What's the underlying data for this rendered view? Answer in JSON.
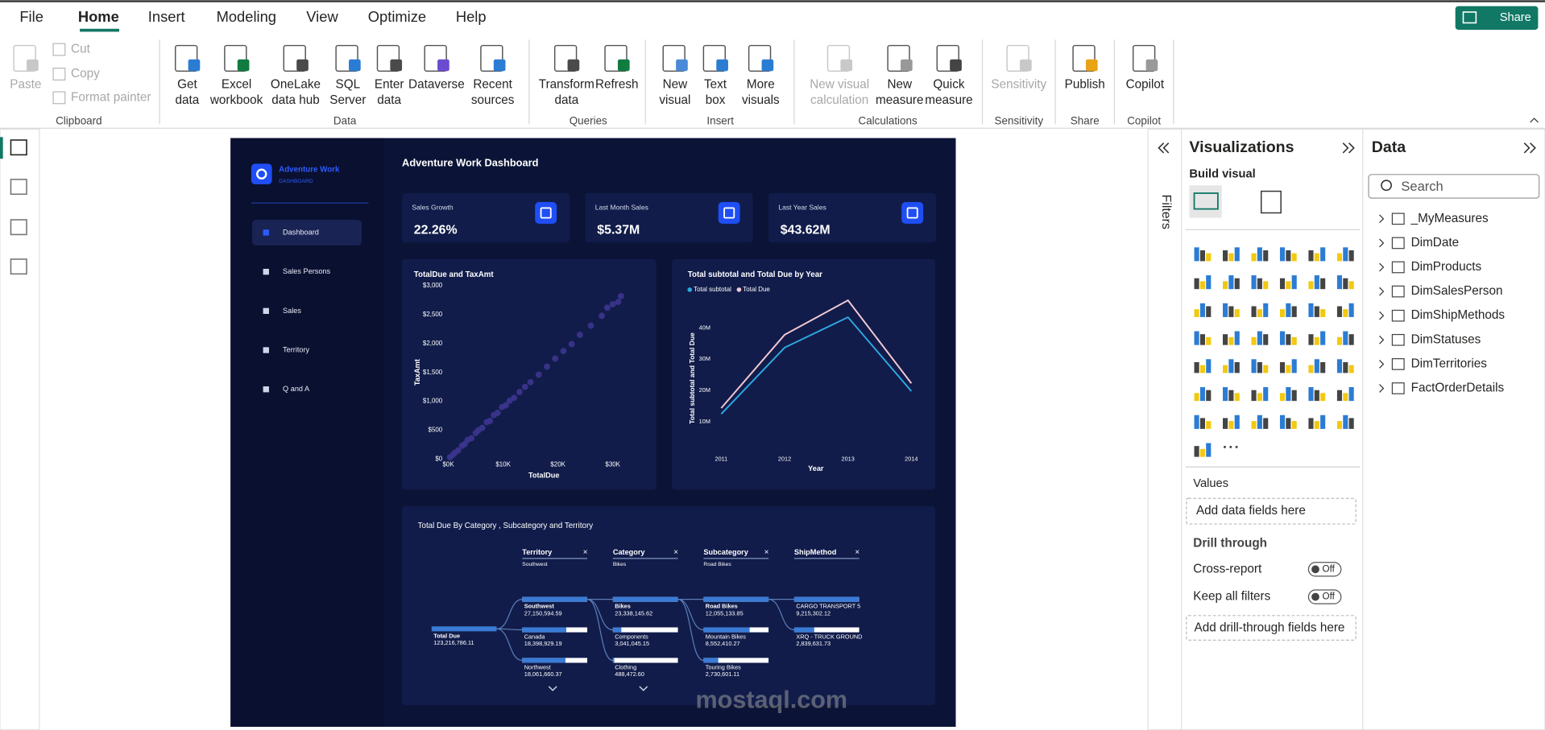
{
  "app": {
    "menu": [
      "File",
      "Home",
      "Insert",
      "Modeling",
      "View",
      "Optimize",
      "Help"
    ],
    "share": "Share",
    "ribbon": [
      {
        "label": "Clipboard",
        "buttons": [
          [
            "Paste"
          ],
          [
            "Cut"
          ],
          [
            "Copy"
          ],
          [
            "Format painter"
          ]
        ]
      },
      {
        "label": "Data",
        "buttons": [
          [
            "Get",
            "data"
          ],
          [
            "Excel",
            "workbook"
          ],
          [
            "OneLake",
            "data hub"
          ],
          [
            "SQL",
            "Server"
          ],
          [
            "Enter",
            "data"
          ],
          [
            "Dataverse"
          ],
          [
            "Recent",
            "sources"
          ]
        ]
      },
      {
        "label": "Queries",
        "buttons": [
          [
            "Transform",
            "data"
          ],
          [
            "Refresh"
          ]
        ]
      },
      {
        "label": "Insert",
        "buttons": [
          [
            "New",
            "visual"
          ],
          [
            "Text",
            "box"
          ],
          [
            "More",
            "visuals"
          ]
        ]
      },
      {
        "label": "Calculations",
        "buttons": [
          [
            "New visual",
            "calculation"
          ],
          [
            "New",
            "measure"
          ],
          [
            "Quick",
            "measure"
          ]
        ]
      },
      {
        "label": "Sensitivity",
        "buttons": [
          [
            "Sensitivity"
          ]
        ]
      },
      {
        "label": "Share",
        "buttons": [
          [
            "Publish"
          ]
        ]
      },
      {
        "label": "Copilot",
        "buttons": [
          [
            "Copilot"
          ]
        ]
      }
    ]
  },
  "dashboard": {
    "brand": "Adventure Work",
    "brand_sub": "DASHBOARD",
    "nav": [
      "Dashboard",
      "Sales Persons",
      "Sales",
      "Territory",
      "Q and A"
    ],
    "title": "Adventure Work Dashboard",
    "kpis": [
      {
        "label": "Sales Growth",
        "value": "22.26%"
      },
      {
        "label": "Last Month Sales",
        "value": "$5.37M"
      },
      {
        "label": "Last Year Sales",
        "value": "$43.62M"
      }
    ],
    "tree": {
      "title": "Total Due By Category , Subcategory and Territory",
      "root": {
        "name": "Total Due",
        "value": 123216786.11,
        "value_label": "123,216,786.11"
      },
      "levels": [
        {
          "header": "Territory",
          "selected": "Southwest",
          "nodes": [
            {
              "name": "Southwest",
              "value": 27150594.59,
              "value_label": "27,150,594.59"
            },
            {
              "name": "Canada",
              "value": 18398929.19,
              "value_label": "18,398,929.19"
            },
            {
              "name": "Northwest",
              "value": 18061660.37,
              "value_label": "18,061,660.37"
            }
          ]
        },
        {
          "header": "Category",
          "selected": "Bikes",
          "nodes": [
            {
              "name": "Bikes",
              "value": 23338145.62,
              "value_label": "23,338,145.62"
            },
            {
              "name": "Components",
              "value": 3041045.15,
              "value_label": "3,041,045.15"
            },
            {
              "name": "Clothing",
              "value": 488472.6,
              "value_label": "488,472.60"
            }
          ]
        },
        {
          "header": "Subcategory",
          "selected": "Road Bikes",
          "nodes": [
            {
              "name": "Road Bikes",
              "value": 12055133.85,
              "value_label": "12,055,133.85"
            },
            {
              "name": "Mountain Bikes",
              "value": 8552410.27,
              "value_label": "8,552,410.27"
            },
            {
              "name": "Touring Bikes",
              "value": 2730601.11,
              "value_label": "2,730,601.11"
            }
          ]
        },
        {
          "header": "ShipMethod",
          "nodes": [
            {
              "name": "CARGO TRANSPORT 5",
              "value": 9215302.12,
              "value_label": "9,215,302.12"
            },
            {
              "name": "XRQ - TRUCK GROUND",
              "value": 2839631.73,
              "value_label": "2,839,631.73"
            }
          ]
        }
      ]
    }
  },
  "chart_data": [
    {
      "type": "scatter",
      "title": "TotalDue and TaxAmt",
      "x_label": "TotalDue",
      "y_label": "TaxAmt",
      "color": "#3d358f",
      "x": [
        300,
        800,
        1200,
        1800,
        2500,
        3000,
        3500,
        4200,
        5000,
        5500,
        6200,
        7000,
        7600,
        8300,
        9000,
        9800,
        10500,
        11200,
        12000,
        13000,
        14000,
        15000,
        16500,
        18000,
        19500,
        21000,
        22500,
        24000,
        26000,
        28000,
        29000,
        30000,
        31000,
        31500
      ],
      "values": [
        30,
        70,
        110,
        150,
        230,
        260,
        330,
        360,
        450,
        500,
        540,
        640,
        660,
        760,
        800,
        900,
        930,
        1010,
        1060,
        1160,
        1250,
        1330,
        1460,
        1600,
        1740,
        1870,
        1990,
        2150,
        2310,
        2480,
        2620,
        2680,
        2720,
        2820
      ],
      "xlim": [
        0,
        32000
      ],
      "ylim": [
        0,
        3000
      ],
      "xticks": [
        {
          "value": 0,
          "label": "$0K"
        },
        {
          "value": 10000,
          "label": "$10K"
        },
        {
          "value": 20000,
          "label": "$20K"
        },
        {
          "value": 30000,
          "label": "$30K"
        }
      ],
      "yticks": [
        {
          "value": 0,
          "label": "$0"
        },
        {
          "value": 500,
          "label": "$500"
        },
        {
          "value": 1000,
          "label": "$1,000"
        },
        {
          "value": 1500,
          "label": "$1,500"
        },
        {
          "value": 2000,
          "label": "$2,000"
        },
        {
          "value": 2500,
          "label": "$2,500"
        },
        {
          "value": 3000,
          "label": "$3,000"
        }
      ]
    },
    {
      "type": "line",
      "title": "Total subtotal and Total Due by Year",
      "x_label": "Year",
      "y_label": "Total subtotal and Total Due",
      "categories": [
        "2011",
        "2012",
        "2013",
        "2014"
      ],
      "series": [
        {
          "name": "Total subtotal",
          "color": "#2fa8e0",
          "values": [
            12500000,
            33700000,
            43400000,
            19800000
          ]
        },
        {
          "name": "Total Due",
          "color": "#f3c9d4",
          "values": [
            14400000,
            37800000,
            48800000,
            22300000
          ]
        }
      ],
      "ylim": [
        0,
        50000000
      ],
      "yticks": [
        {
          "value": 10000000,
          "label": "10M"
        },
        {
          "value": 20000000,
          "label": "20M"
        },
        {
          "value": 30000000,
          "label": "30M"
        },
        {
          "value": 40000000,
          "label": "40M"
        }
      ]
    }
  ],
  "filters": "Filters",
  "visualizations": {
    "title": "Visualizations",
    "build": "Build visual",
    "values": "Values",
    "values_hint": "Add data fields here",
    "drill": "Drill through",
    "cross": "Cross-report",
    "cross_state": "Off",
    "keep": "Keep all filters",
    "keep_state": "Off",
    "drill_hint": "Add drill-through fields here"
  },
  "data_pane": {
    "title": "Data",
    "search": "Search",
    "tables": [
      "_MyMeasures",
      "DimDate",
      "DimProducts",
      "DimSalesPerson",
      "DimShipMethods",
      "DimStatuses",
      "DimTerritories",
      "FactOrderDetails"
    ]
  },
  "watermark": "mostaql.com"
}
